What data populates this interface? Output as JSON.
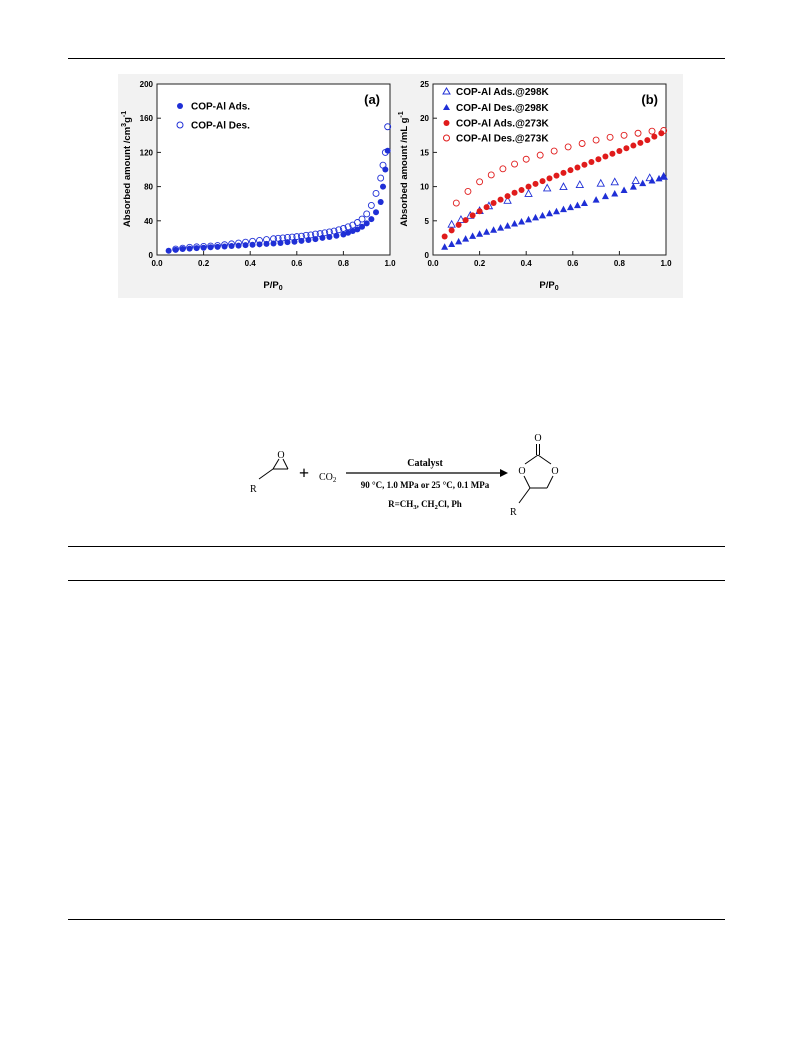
{
  "chart_data": [
    {
      "type": "scatter",
      "panel_label": "(a)",
      "xlabel": "P/P",
      "xlabel_sub": "0",
      "ylabel": "Absorbed amount /cm",
      "ylabel_sup1": "3",
      "ylabel_mid": "g",
      "ylabel_sup2": "-1",
      "xlim": [
        0.0,
        1.0
      ],
      "ylim": [
        0,
        200
      ],
      "xticks": [
        "0.0",
        "0.2",
        "0.4",
        "0.6",
        "0.8",
        "1.0"
      ],
      "yticks": [
        "0",
        "40",
        "80",
        "120",
        "160",
        "200"
      ],
      "grid": false,
      "legend_position": "top-left",
      "series": [
        {
          "name": "COP-Al Ads.",
          "marker": "filled-circle",
          "color": "#1f2fd6",
          "x": [
            0.05,
            0.08,
            0.11,
            0.14,
            0.17,
            0.2,
            0.23,
            0.26,
            0.29,
            0.32,
            0.35,
            0.38,
            0.41,
            0.44,
            0.47,
            0.5,
            0.53,
            0.56,
            0.59,
            0.62,
            0.65,
            0.68,
            0.71,
            0.74,
            0.77,
            0.8,
            0.82,
            0.84,
            0.86,
            0.88,
            0.9,
            0.92,
            0.94,
            0.96,
            0.97,
            0.98,
            0.99
          ],
          "y": [
            5,
            6,
            7,
            7.5,
            8,
            8.5,
            9,
            9.5,
            10,
            10.5,
            11,
            11.5,
            12,
            12.5,
            13,
            13.5,
            14,
            15,
            15.5,
            16.5,
            17.5,
            18.5,
            20,
            21,
            22.5,
            24,
            26,
            28,
            30,
            33,
            37,
            42,
            50,
            62,
            80,
            100,
            122
          ]
        },
        {
          "name": "COP-Al Des.",
          "marker": "open-circle",
          "color": "#1f2fd6",
          "x": [
            0.99,
            0.98,
            0.97,
            0.96,
            0.94,
            0.92,
            0.9,
            0.88,
            0.86,
            0.84,
            0.82,
            0.8,
            0.78,
            0.76,
            0.74,
            0.72,
            0.7,
            0.68,
            0.66,
            0.64,
            0.62,
            0.6,
            0.58,
            0.56,
            0.54,
            0.52,
            0.5,
            0.47,
            0.44,
            0.41,
            0.38,
            0.35,
            0.32,
            0.29,
            0.26,
            0.23,
            0.2,
            0.17,
            0.14,
            0.11,
            0.08
          ],
          "y": [
            150,
            120,
            105,
            90,
            72,
            58,
            48,
            42,
            38,
            35,
            33,
            31,
            29.5,
            28,
            27,
            26,
            25,
            24.5,
            23.5,
            23,
            22,
            21.5,
            21,
            20.5,
            20,
            19.5,
            19,
            18,
            17,
            16,
            15,
            14,
            13,
            12,
            11,
            10.5,
            10,
            9.5,
            9,
            8,
            7
          ]
        }
      ]
    },
    {
      "type": "scatter",
      "panel_label": "(b)",
      "xlabel": "P/P",
      "xlabel_sub": "0",
      "ylabel": "Absorbed amount /mL g",
      "ylabel_sup": "-1",
      "xlim": [
        0.0,
        1.0
      ],
      "ylim": [
        0,
        25
      ],
      "xticks": [
        "0.0",
        "0.2",
        "0.4",
        "0.6",
        "0.8",
        "1.0"
      ],
      "yticks": [
        "0",
        "5",
        "10",
        "15",
        "20",
        "25"
      ],
      "grid": false,
      "legend_position": "top-left",
      "series": [
        {
          "name": "COP-Al Ads.@298K",
          "marker": "open-triangle",
          "color": "#1f2fd6",
          "x": [
            0.08,
            0.12,
            0.16,
            0.2,
            0.24,
            0.32,
            0.41,
            0.49,
            0.56,
            0.63,
            0.72,
            0.78,
            0.87,
            0.93,
            0.99
          ],
          "y": [
            4.5,
            5.2,
            5.8,
            6.5,
            7.2,
            8.0,
            9.0,
            9.8,
            10.0,
            10.3,
            10.5,
            10.7,
            10.9,
            11.3,
            11.5
          ]
        },
        {
          "name": "COP-Al Des.@298K",
          "marker": "filled-triangle",
          "color": "#1f2fd6",
          "x": [
            0.05,
            0.08,
            0.11,
            0.14,
            0.17,
            0.2,
            0.23,
            0.26,
            0.29,
            0.32,
            0.35,
            0.38,
            0.41,
            0.44,
            0.47,
            0.5,
            0.53,
            0.56,
            0.59,
            0.62,
            0.65,
            0.7,
            0.74,
            0.78,
            0.82,
            0.86,
            0.9,
            0.94,
            0.97,
            0.99
          ],
          "y": [
            1.2,
            1.6,
            2.0,
            2.4,
            2.8,
            3.1,
            3.4,
            3.7,
            4.0,
            4.3,
            4.6,
            4.9,
            5.2,
            5.5,
            5.8,
            6.1,
            6.4,
            6.7,
            7.0,
            7.3,
            7.6,
            8.1,
            8.6,
            9.0,
            9.5,
            10.0,
            10.5,
            10.9,
            11.2,
            11.5
          ]
        },
        {
          "name": "COP-Al Ads.@273K",
          "marker": "filled-circle",
          "color": "#e01b1b",
          "x": [
            0.05,
            0.08,
            0.11,
            0.14,
            0.17,
            0.2,
            0.23,
            0.26,
            0.29,
            0.32,
            0.35,
            0.38,
            0.41,
            0.44,
            0.47,
            0.5,
            0.53,
            0.56,
            0.59,
            0.62,
            0.65,
            0.68,
            0.71,
            0.74,
            0.77,
            0.8,
            0.83,
            0.86,
            0.89,
            0.92,
            0.95,
            0.98
          ],
          "y": [
            2.7,
            3.6,
            4.4,
            5.1,
            5.8,
            6.4,
            7.0,
            7.6,
            8.1,
            8.6,
            9.1,
            9.5,
            10.0,
            10.4,
            10.8,
            11.2,
            11.6,
            12.0,
            12.4,
            12.8,
            13.2,
            13.6,
            14.0,
            14.4,
            14.8,
            15.2,
            15.6,
            16.0,
            16.4,
            16.8,
            17.3,
            17.8
          ]
        },
        {
          "name": "COP-Al Des.@273K",
          "marker": "open-circle",
          "color": "#e01b1b",
          "x": [
            0.99,
            0.94,
            0.88,
            0.82,
            0.76,
            0.7,
            0.64,
            0.58,
            0.52,
            0.46,
            0.4,
            0.35,
            0.3,
            0.25,
            0.2,
            0.15,
            0.1
          ],
          "y": [
            18.2,
            18.1,
            17.8,
            17.5,
            17.2,
            16.8,
            16.3,
            15.8,
            15.2,
            14.6,
            14.0,
            13.3,
            12.6,
            11.7,
            10.7,
            9.3,
            7.6
          ]
        }
      ]
    }
  ],
  "scheme": {
    "reagent_label": "R",
    "oxygen_label": "O",
    "plus": "+",
    "co2": "CO",
    "co2_sub": "2",
    "arrow_top": "Catalyst",
    "cond_a": "90 °C, 1.0 MPa or 25 °C, 0.1 MPa",
    "r_prefix": "R=CH",
    "r_sub1": "3",
    "r_mid": ", CH",
    "r_sub2": "2",
    "r_suffix": "Cl, Ph",
    "product_o_carbonyl": "O",
    "product_o_left": "O",
    "product_o_right": "O",
    "product_r": "R"
  }
}
